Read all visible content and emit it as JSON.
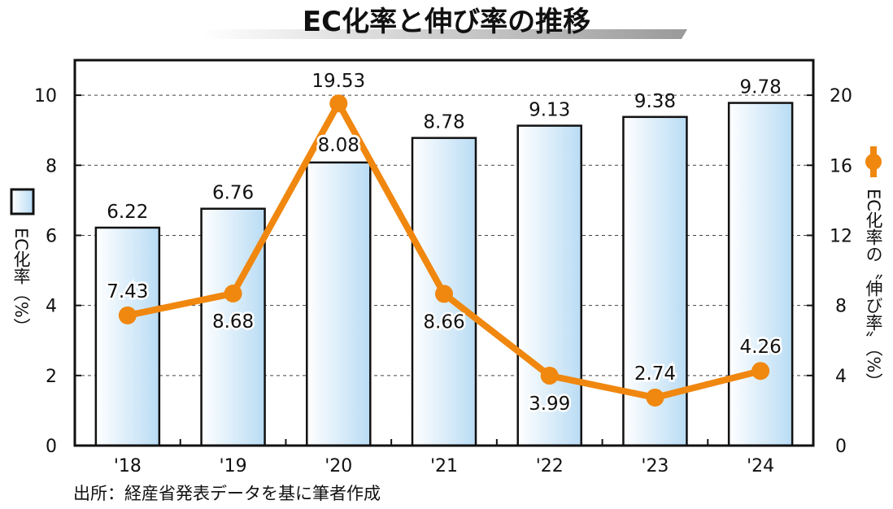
{
  "chart_data": {
    "type": "bar+line",
    "title": "EC化率と伸び率の推移",
    "categories": [
      "'18",
      "'19",
      "'20",
      "'21",
      "'22",
      "'23",
      "'24"
    ],
    "series": [
      {
        "name": "EC化率（%）",
        "type": "bar",
        "axis": "left",
        "values": [
          6.22,
          6.76,
          8.08,
          8.78,
          9.13,
          9.38,
          9.78
        ],
        "labels": [
          "6.22",
          "6.76",
          "8.08",
          "8.78",
          "9.13",
          "9.38",
          "9.78"
        ],
        "color": "#cfe8f8"
      },
      {
        "name": "EC化率の〝伸び率〟（%）",
        "type": "line",
        "axis": "right",
        "values": [
          7.43,
          8.68,
          19.53,
          8.66,
          3.99,
          2.74,
          4.26
        ],
        "labels": [
          "7.43",
          "8.68",
          "19.53",
          "8.66",
          "3.99",
          "2.74",
          "4.26"
        ],
        "color": "#f0870f"
      }
    ],
    "y_left": {
      "label": "EC化率（%）",
      "range": [
        0,
        11
      ],
      "ticks": [
        "0",
        "2",
        "4",
        "6",
        "8",
        "10"
      ]
    },
    "y_right": {
      "label": "EC化率の〝伸び率〟（%）",
      "range": [
        0,
        22
      ],
      "ticks": [
        "0",
        "4",
        "8",
        "12",
        "16",
        "20"
      ]
    },
    "grid": "horizontal dashed",
    "legend_placement": "beside axes (left: bar, right: line)",
    "source": "出所：経産省発表データを基に筆者作成"
  }
}
